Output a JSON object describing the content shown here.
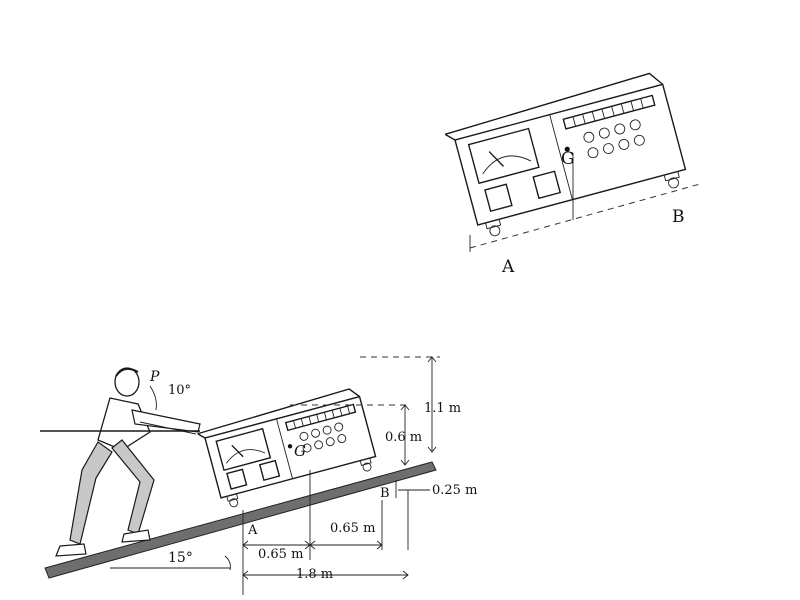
{
  "top_figure": {
    "label_G": "G",
    "label_A": "A",
    "label_B": "B"
  },
  "bottom_figure": {
    "label_P": "P",
    "angle_push": "10°",
    "label_G": "G",
    "label_A": "A",
    "label_B": "B",
    "dim_height_total": "1.1 m",
    "dim_height_G": "0.6 m",
    "dim_wheel": "0.25 m",
    "dim_A_to_G": "0.65 m",
    "dim_G_to_B": "0.65 m",
    "dim_length": "1.8 m",
    "angle_slope": "15°"
  }
}
